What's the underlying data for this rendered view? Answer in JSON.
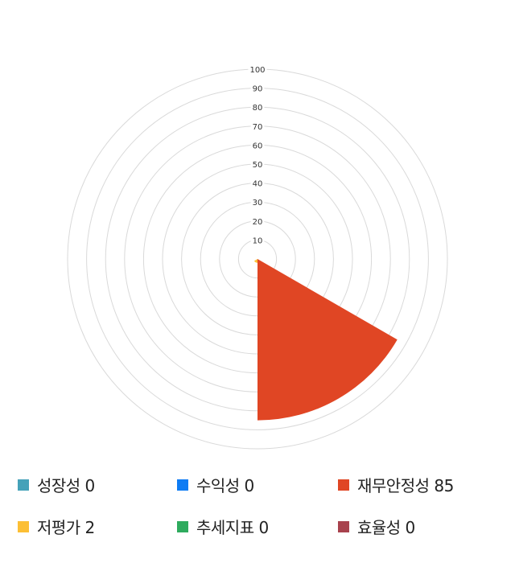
{
  "chart_data": {
    "type": "polar-area",
    "r_ticks": [
      10,
      20,
      30,
      40,
      50,
      60,
      70,
      80,
      90,
      100
    ],
    "r_range": [
      0,
      100
    ],
    "grid": true,
    "legend_position": "bottom",
    "categories": [
      "성장성",
      "수익성",
      "재무안정성",
      "저평가",
      "추세지표",
      "효율성"
    ],
    "values": [
      0,
      0,
      85,
      2,
      0,
      0
    ],
    "colors": [
      "#45a2b9",
      "#0e7cf4",
      "#e04624",
      "#fcbf35",
      "#2eab5e",
      "#a8424d"
    ]
  },
  "legend": [
    {
      "label": "성장성 0",
      "color": "#45a2b9"
    },
    {
      "label": "수익성 0",
      "color": "#0e7cf4"
    },
    {
      "label": "재무안정성 85",
      "color": "#e04624"
    },
    {
      "label": "저평가 2",
      "color": "#fcbf35"
    },
    {
      "label": "추세지표 0",
      "color": "#2eab5e"
    },
    {
      "label": "효율성 0",
      "color": "#a8424d"
    }
  ]
}
